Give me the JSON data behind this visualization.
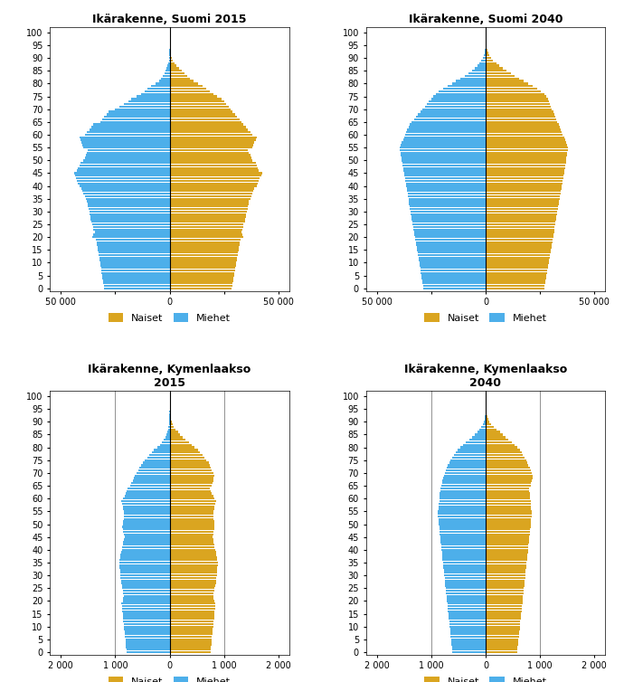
{
  "titles": [
    "Ikärakenne, Suomi 2015",
    "Ikärakenne, Suomi 2040",
    "Ikärakenne, Kymenlaakso\n2015",
    "Ikärakenne, Kymenlaakso\n2040"
  ],
  "legend_labels": [
    "Naiset",
    "Miehet"
  ],
  "colors": {
    "naiset": "#DAA520",
    "miehet": "#4DAFEA"
  },
  "background": "#FFFFFF",
  "xlim_suomi": 55000,
  "xlim_kymi": 2200,
  "xticks_suomi": [
    -50000,
    -25000,
    0,
    25000,
    50000
  ],
  "xticks_suomi_labels": [
    "50 000",
    "",
    "0",
    "",
    "50 000"
  ],
  "xticks_kymi": [
    -2000,
    -1000,
    0,
    1000,
    2000
  ],
  "xticks_kymi_labels": [
    "2 000",
    "1 000",
    "0",
    "1 000",
    "2 000"
  ],
  "ages": [
    0,
    1,
    2,
    3,
    4,
    5,
    6,
    7,
    8,
    9,
    10,
    11,
    12,
    13,
    14,
    15,
    16,
    17,
    18,
    19,
    20,
    21,
    22,
    23,
    24,
    25,
    26,
    27,
    28,
    29,
    30,
    31,
    32,
    33,
    34,
    35,
    36,
    37,
    38,
    39,
    40,
    41,
    42,
    43,
    44,
    45,
    46,
    47,
    48,
    49,
    50,
    51,
    52,
    53,
    54,
    55,
    56,
    57,
    58,
    59,
    60,
    61,
    62,
    63,
    64,
    65,
    66,
    67,
    68,
    69,
    70,
    71,
    72,
    73,
    74,
    75,
    76,
    77,
    78,
    79,
    80,
    81,
    82,
    83,
    84,
    85,
    86,
    87,
    88,
    89,
    90,
    91,
    92,
    93,
    94,
    95,
    96,
    97,
    98,
    99,
    100
  ],
  "suomi_2015_naiset": [
    28500,
    28700,
    29000,
    29200,
    29400,
    29600,
    29800,
    30000,
    30200,
    30400,
    30600,
    30800,
    31000,
    31200,
    31400,
    31600,
    31800,
    32000,
    32200,
    32400,
    34000,
    33500,
    33000,
    33500,
    33800,
    34000,
    34500,
    34800,
    35000,
    35200,
    35500,
    35800,
    36000,
    36200,
    36500,
    37000,
    37500,
    38000,
    38500,
    39000,
    40000,
    40500,
    41000,
    41500,
    42000,
    42500,
    41000,
    40500,
    40000,
    39500,
    38000,
    37500,
    37000,
    36500,
    36000,
    38000,
    38500,
    39000,
    39500,
    40000,
    38000,
    37000,
    36000,
    35000,
    34000,
    33000,
    32000,
    31000,
    30000,
    29000,
    28000,
    27000,
    26000,
    25000,
    24000,
    22000,
    20000,
    18500,
    17000,
    15000,
    13000,
    11000,
    9500,
    8000,
    6800,
    5500,
    4300,
    3200,
    2300,
    1600,
    1050,
    680,
    420,
    250,
    140,
    70,
    35,
    15,
    6,
    2,
    1
  ],
  "suomi_2015_miehet": [
    30000,
    30200,
    30400,
    30600,
    30800,
    31000,
    31200,
    31400,
    31600,
    31800,
    32000,
    32200,
    32400,
    32600,
    32800,
    33000,
    33200,
    33400,
    33600,
    33800,
    35500,
    35000,
    34500,
    35000,
    35300,
    35500,
    36000,
    36300,
    36500,
    36700,
    37000,
    37300,
    37500,
    37700,
    38000,
    38500,
    39000,
    39500,
    40000,
    40500,
    41500,
    42000,
    42500,
    43000,
    43500,
    44000,
    42500,
    42000,
    41500,
    41000,
    39500,
    39000,
    38500,
    38000,
    37500,
    39500,
    40000,
    40500,
    41000,
    41500,
    39000,
    38000,
    37000,
    36000,
    35000,
    32000,
    31000,
    30000,
    29000,
    28000,
    25000,
    23000,
    21000,
    19000,
    17500,
    15000,
    13000,
    11500,
    10000,
    8500,
    6500,
    5000,
    4000,
    3100,
    2400,
    1800,
    1300,
    900,
    600,
    380,
    230,
    130,
    75,
    40,
    20,
    9,
    4,
    1,
    0,
    0,
    0
  ],
  "suomi_2040_naiset": [
    27000,
    27200,
    27400,
    27600,
    27800,
    28000,
    28200,
    28400,
    28600,
    28800,
    29000,
    29200,
    29400,
    29600,
    29800,
    30000,
    30200,
    30400,
    30600,
    30800,
    31000,
    31200,
    31400,
    31600,
    31800,
    32000,
    32200,
    32400,
    32600,
    32800,
    33000,
    33200,
    33400,
    33600,
    33800,
    34000,
    34200,
    34400,
    34600,
    34800,
    35000,
    35200,
    35400,
    35600,
    35800,
    36000,
    36200,
    36400,
    36600,
    36800,
    37000,
    37200,
    37400,
    37600,
    37800,
    38000,
    37500,
    37000,
    36500,
    36000,
    35500,
    35000,
    34500,
    34000,
    33500,
    33000,
    32500,
    32000,
    31500,
    31000,
    30500,
    30000,
    29500,
    29000,
    28500,
    28000,
    27000,
    25500,
    23500,
    21500,
    19500,
    17500,
    15500,
    13500,
    11500,
    9500,
    7800,
    6200,
    4800,
    3500,
    2500,
    1700,
    1100,
    700,
    400,
    220,
    110,
    50,
    20,
    7,
    2
  ],
  "suomi_2040_miehet": [
    28500,
    28700,
    28900,
    29100,
    29300,
    29500,
    29700,
    29900,
    30100,
    30300,
    30500,
    30700,
    30900,
    31100,
    31300,
    31500,
    31700,
    31900,
    32100,
    32300,
    32500,
    32700,
    32900,
    33100,
    33300,
    33500,
    33700,
    33900,
    34100,
    34300,
    34500,
    34700,
    34900,
    35100,
    35300,
    35500,
    35700,
    35900,
    36100,
    36300,
    36500,
    36700,
    36900,
    37100,
    37300,
    37500,
    37700,
    37900,
    38100,
    38300,
    38500,
    38700,
    38900,
    39100,
    39300,
    39500,
    39000,
    38500,
    38000,
    37500,
    37000,
    36500,
    36000,
    35500,
    35000,
    34000,
    33000,
    32000,
    31000,
    30000,
    29000,
    28000,
    27000,
    26000,
    25000,
    24000,
    23000,
    21500,
    19500,
    17500,
    15500,
    13500,
    11500,
    9500,
    7800,
    6200,
    4800,
    3700,
    2700,
    1900,
    1300,
    840,
    520,
    300,
    165,
    85,
    40,
    17,
    6,
    2,
    0
  ],
  "kymi_2015_naiset": [
    750,
    755,
    760,
    765,
    770,
    775,
    780,
    785,
    790,
    795,
    800,
    805,
    810,
    815,
    820,
    825,
    830,
    835,
    840,
    845,
    820,
    810,
    800,
    810,
    820,
    830,
    840,
    850,
    855,
    860,
    865,
    870,
    875,
    880,
    885,
    890,
    880,
    870,
    860,
    850,
    840,
    830,
    820,
    810,
    800,
    790,
    800,
    810,
    820,
    830,
    820,
    815,
    810,
    805,
    800,
    810,
    820,
    830,
    840,
    850,
    820,
    800,
    780,
    760,
    740,
    780,
    790,
    800,
    810,
    820,
    800,
    780,
    760,
    740,
    720,
    680,
    640,
    600,
    560,
    520,
    460,
    400,
    350,
    290,
    240,
    190,
    150,
    110,
    80,
    55,
    35,
    22,
    13,
    7,
    4,
    2,
    1,
    0,
    0,
    0,
    0
  ],
  "kymi_2015_miehet": [
    790,
    795,
    800,
    805,
    810,
    815,
    820,
    825,
    830,
    835,
    840,
    845,
    850,
    855,
    860,
    865,
    870,
    875,
    880,
    885,
    860,
    850,
    840,
    850,
    860,
    870,
    880,
    890,
    895,
    900,
    905,
    910,
    915,
    920,
    925,
    930,
    920,
    910,
    900,
    890,
    880,
    870,
    860,
    850,
    840,
    830,
    840,
    850,
    860,
    870,
    855,
    850,
    845,
    840,
    835,
    845,
    855,
    865,
    875,
    885,
    850,
    830,
    810,
    790,
    770,
    720,
    700,
    680,
    660,
    640,
    610,
    580,
    550,
    520,
    490,
    450,
    410,
    370,
    330,
    290,
    230,
    180,
    140,
    105,
    80,
    60,
    45,
    30,
    20,
    13,
    8,
    5,
    3,
    1,
    1,
    0,
    0,
    0,
    0,
    0,
    0
  ],
  "kymi_2040_naiset": [
    580,
    585,
    590,
    595,
    600,
    605,
    610,
    615,
    620,
    625,
    630,
    635,
    640,
    645,
    650,
    655,
    660,
    665,
    670,
    675,
    680,
    685,
    690,
    695,
    700,
    705,
    710,
    715,
    720,
    725,
    730,
    735,
    740,
    745,
    750,
    755,
    760,
    765,
    770,
    775,
    780,
    785,
    790,
    795,
    800,
    805,
    810,
    815,
    820,
    825,
    830,
    835,
    840,
    845,
    850,
    845,
    840,
    835,
    830,
    825,
    820,
    815,
    810,
    805,
    800,
    830,
    840,
    850,
    860,
    870,
    850,
    830,
    810,
    790,
    770,
    750,
    720,
    690,
    660,
    630,
    580,
    530,
    480,
    420,
    370,
    310,
    260,
    200,
    150,
    105,
    70,
    45,
    28,
    16,
    8,
    4,
    2,
    1,
    0,
    0,
    0
  ],
  "kymi_2040_miehet": [
    610,
    615,
    620,
    625,
    630,
    635,
    640,
    645,
    650,
    655,
    660,
    665,
    670,
    675,
    680,
    685,
    690,
    695,
    700,
    705,
    710,
    715,
    720,
    725,
    730,
    735,
    740,
    745,
    750,
    755,
    760,
    765,
    770,
    775,
    780,
    785,
    790,
    795,
    800,
    805,
    810,
    815,
    820,
    825,
    830,
    835,
    840,
    845,
    850,
    855,
    860,
    865,
    870,
    875,
    880,
    875,
    870,
    865,
    860,
    855,
    850,
    845,
    840,
    835,
    830,
    810,
    800,
    790,
    780,
    770,
    750,
    730,
    710,
    690,
    670,
    640,
    610,
    580,
    550,
    510,
    460,
    410,
    360,
    300,
    250,
    200,
    155,
    115,
    82,
    56,
    36,
    22,
    13,
    7,
    3,
    1,
    0,
    0,
    0,
    0,
    0
  ]
}
